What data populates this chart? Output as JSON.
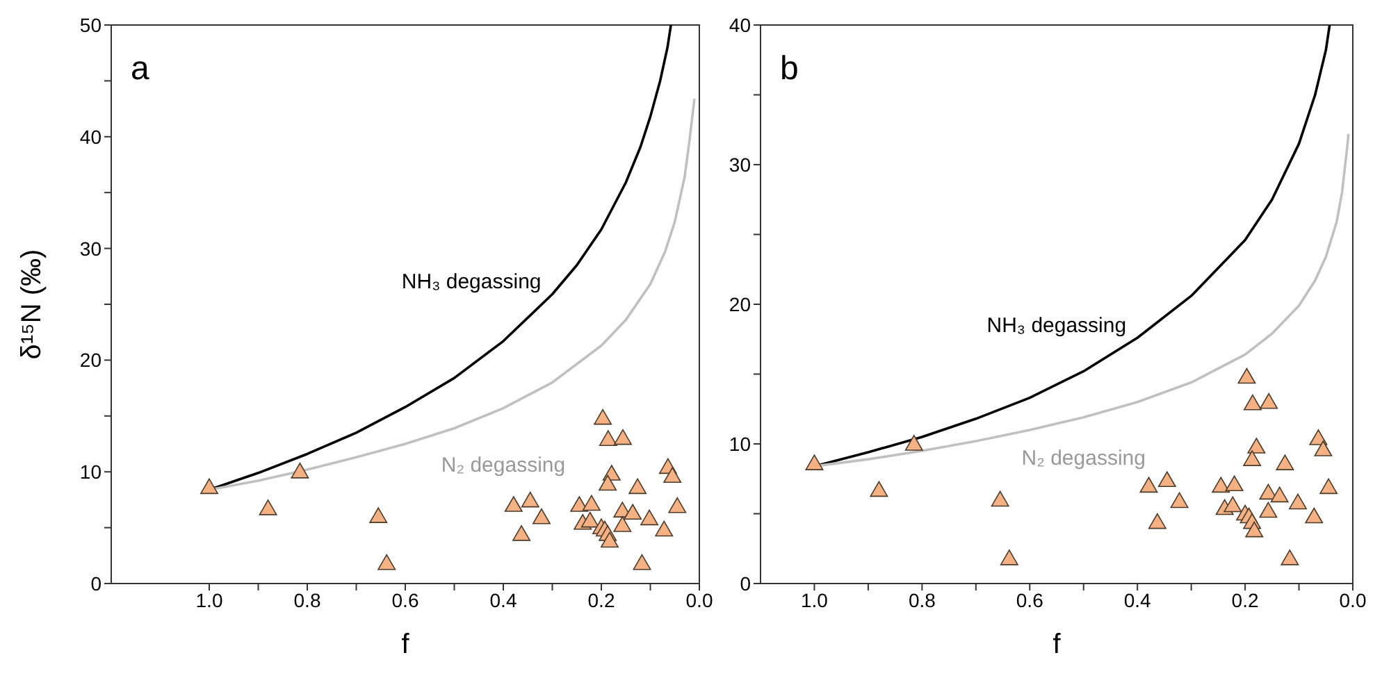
{
  "chart_data": [
    {
      "type": "scatter",
      "title": "a",
      "xlabel": "f",
      "ylabel": "δ¹⁵N (‰)",
      "xlim": [
        1.2,
        0
      ],
      "xticks": [
        {
          "value": 1,
          "label": "1.0"
        },
        {
          "value": 0.9,
          "label": null
        },
        {
          "value": 0.8,
          "label": "0.8"
        },
        {
          "value": 0.7,
          "label": null
        },
        {
          "value": 0.6,
          "label": "0.6"
        },
        {
          "value": 0.5,
          "label": null
        },
        {
          "value": 0.4,
          "label": "0.4"
        },
        {
          "value": 0.3,
          "label": null
        },
        {
          "value": 0.2,
          "label": "0.2"
        },
        {
          "value": 0.1,
          "label": null
        },
        {
          "value": 0,
          "label": "0.0"
        }
      ],
      "ylim": [
        0,
        50
      ],
      "yticks": [
        0,
        {
          "value": 5,
          "label": null
        },
        10,
        {
          "value": 15,
          "label": null
        },
        20,
        {
          "value": 25,
          "label": null
        },
        30,
        {
          "value": 35,
          "label": null
        },
        40,
        {
          "value": 45,
          "label": null
        },
        50
      ],
      "series": [
        {
          "type": "scatter",
          "marker": "triangle",
          "color": "#f4b183",
          "x": [
            1.0,
            0.88,
            0.815,
            0.655,
            0.638,
            0.379,
            0.345,
            0.322,
            0.363,
            0.197,
            0.186,
            0.156,
            0.179,
            0.187,
            0.126,
            0.064,
            0.055,
            0.045,
            0.245,
            0.22,
            0.238,
            0.223,
            0.2,
            0.193,
            0.187,
            0.183,
            0.157,
            0.136,
            0.157,
            0.102,
            0.072,
            0.117
          ],
          "values": [
            8.5,
            6.6,
            9.9,
            5.9,
            1.7,
            6.9,
            7.3,
            5.8,
            4.3,
            14.7,
            12.8,
            12.9,
            9.7,
            8.8,
            8.5,
            10.3,
            9.5,
            6.8,
            6.9,
            7.0,
            5.3,
            5.5,
            4.9,
            4.7,
            4.3,
            3.7,
            6.4,
            6.2,
            5.1,
            5.7,
            4.7,
            1.7
          ]
        },
        {
          "type": "line",
          "color": "#000000",
          "x": [
            1.0,
            0.9,
            0.8,
            0.7,
            0.6,
            0.5,
            0.4,
            0.3,
            0.25,
            0.2,
            0.15,
            0.12,
            0.1,
            0.08,
            0.065,
            0.058
          ],
          "values": [
            8.4,
            9.9,
            11.6,
            13.5,
            15.8,
            18.4,
            21.7,
            25.9,
            28.5,
            31.7,
            35.9,
            39.1,
            41.8,
            45,
            48,
            50
          ]
        },
        {
          "type": "line",
          "color": "#c0c0c0",
          "x": [
            1.0,
            0.9,
            0.8,
            0.7,
            0.6,
            0.5,
            0.4,
            0.3,
            0.2,
            0.15,
            0.1,
            0.07,
            0.05,
            0.03,
            0.02,
            0.01
          ],
          "values": [
            8.4,
            9.2,
            10.2,
            11.3,
            12.5,
            13.9,
            15.7,
            18.0,
            21.3,
            23.6,
            26.8,
            29.7,
            32.4,
            36.4,
            39.7,
            43.4
          ]
        }
      ],
      "annotations": [
        {
          "text": "NH₃ degassing",
          "x": 0.3,
          "y": 25.9
        },
        {
          "text": "N₂ degassing",
          "x": 0.4,
          "y": 15.7
        }
      ]
    },
    {
      "type": "scatter",
      "title": "b",
      "xlabel": "f",
      "xlim": [
        1.1,
        0
      ],
      "xticks": [
        {
          "value": 1,
          "label": "1.0"
        },
        {
          "value": 0.9,
          "label": null
        },
        {
          "value": 0.8,
          "label": "0.8"
        },
        {
          "value": 0.7,
          "label": null
        },
        {
          "value": 0.6,
          "label": "0.6"
        },
        {
          "value": 0.5,
          "label": null
        },
        {
          "value": 0.4,
          "label": "0.4"
        },
        {
          "value": 0.3,
          "label": null
        },
        {
          "value": 0.2,
          "label": "0.2"
        },
        {
          "value": 0.1,
          "label": null
        },
        {
          "value": 0,
          "label": "0.0"
        }
      ],
      "ylim": [
        0,
        40
      ],
      "yticks": [
        0,
        {
          "value": 5,
          "label": null
        },
        10,
        {
          "value": 15,
          "label": null
        },
        20,
        {
          "value": 25,
          "label": null
        },
        30,
        {
          "value": 35,
          "label": null
        },
        40
      ],
      "series": [
        {
          "type": "scatter",
          "marker": "triangle",
          "color": "#f4b183",
          "x": [
            1.0,
            0.88,
            0.815,
            0.655,
            0.638,
            0.379,
            0.345,
            0.322,
            0.363,
            0.197,
            0.186,
            0.156,
            0.179,
            0.187,
            0.126,
            0.064,
            0.055,
            0.045,
            0.245,
            0.22,
            0.238,
            0.223,
            0.2,
            0.193,
            0.187,
            0.183,
            0.157,
            0.136,
            0.157,
            0.102,
            0.072,
            0.117
          ],
          "values": [
            8.5,
            6.6,
            9.9,
            5.9,
            1.7,
            6.9,
            7.3,
            5.8,
            4.3,
            14.7,
            12.8,
            12.9,
            9.7,
            8.8,
            8.5,
            10.3,
            9.5,
            6.8,
            6.9,
            7.0,
            5.3,
            5.5,
            4.9,
            4.7,
            4.3,
            3.7,
            6.4,
            6.2,
            5.1,
            5.7,
            4.7,
            1.7
          ]
        },
        {
          "type": "line",
          "color": "#000000",
          "x": [
            1.0,
            0.9,
            0.8,
            0.7,
            0.6,
            0.5,
            0.4,
            0.3,
            0.2,
            0.15,
            0.1,
            0.07,
            0.05,
            0.043
          ],
          "values": [
            8.4,
            9.4,
            10.5,
            11.8,
            13.3,
            15.2,
            17.6,
            20.6,
            24.6,
            27.5,
            31.5,
            35,
            38.2,
            40
          ]
        },
        {
          "type": "line",
          "color": "#c0c0c0",
          "x": [
            1.0,
            0.9,
            0.8,
            0.7,
            0.6,
            0.5,
            0.4,
            0.3,
            0.2,
            0.15,
            0.1,
            0.07,
            0.05,
            0.03,
            0.02,
            0.01,
            0.008
          ],
          "values": [
            8.4,
            8.9,
            9.5,
            10.2,
            11,
            11.9,
            13,
            14.4,
            16.4,
            17.9,
            19.9,
            21.7,
            23.4,
            25.9,
            28,
            31.4,
            32.2
          ]
        }
      ],
      "annotations": [
        {
          "text": "NH₃ degassing",
          "x": 0.4,
          "y": 17.6
        },
        {
          "text": "N₂ degassing",
          "x": 0.5,
          "y": 11.9
        }
      ]
    }
  ]
}
